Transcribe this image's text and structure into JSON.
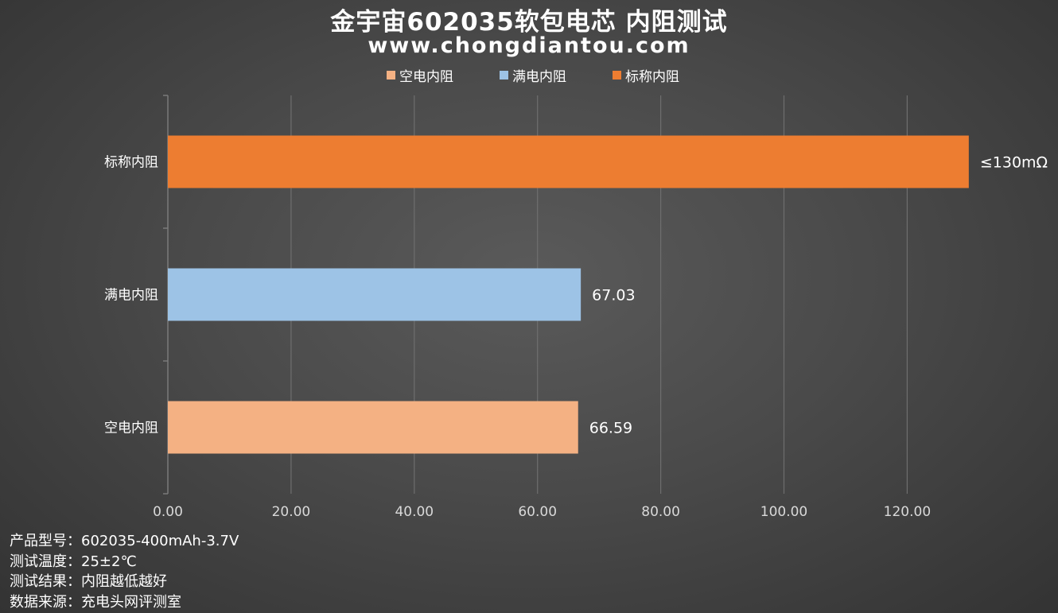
{
  "chart_data": {
    "type": "bar",
    "orientation": "horizontal",
    "title": "金宇宙602035软包电芯 内阻测试",
    "subtitle": "www.chongdiantou.com",
    "categories": [
      "空电内阻",
      "满电内阻",
      "标称内阻"
    ],
    "values": [
      66.59,
      67.03,
      130
    ],
    "data_labels": [
      "66.59",
      "67.03",
      "≤130mΩ"
    ],
    "colors": [
      "#f4b183",
      "#9dc3e6",
      "#ed7d31"
    ],
    "legend": [
      {
        "label": "空电内阻",
        "color": "#f4b183"
      },
      {
        "label": "满电内阻",
        "color": "#9dc3e6"
      },
      {
        "label": "标称内阻",
        "color": "#ed7d31"
      }
    ],
    "legend_position": "top",
    "xlim": [
      0,
      130
    ],
    "xticks": [
      0,
      20,
      40,
      60,
      80,
      100,
      120
    ],
    "xtick_labels": [
      "0.00",
      "20.00",
      "40.00",
      "60.00",
      "80.00",
      "100.00",
      "120.00"
    ],
    "grid": "vertical"
  },
  "notes": [
    "产品型号：602035-400mAh-3.7V",
    "测试温度：25±2℃",
    "测试结果：内阻越低越好",
    "数据来源：充电头网评测室"
  ]
}
